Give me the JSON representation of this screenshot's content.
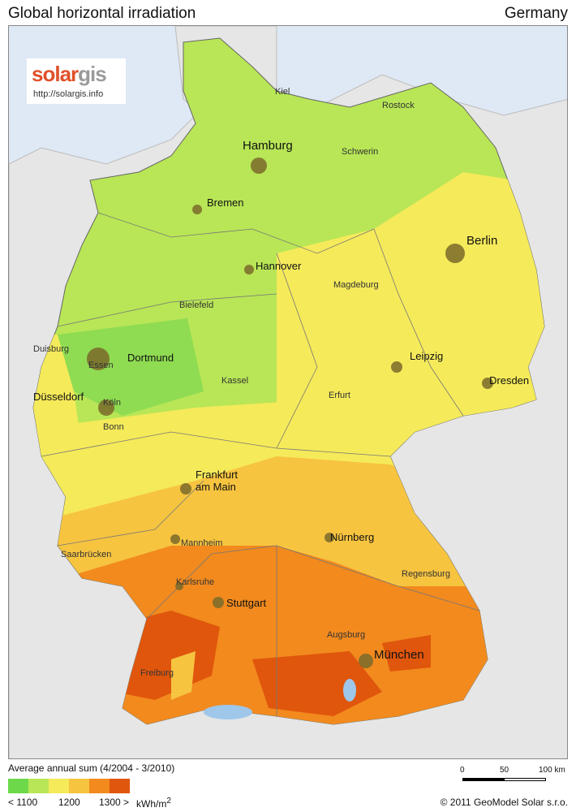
{
  "header": {
    "title": "Global horizontal irradiation",
    "country": "Germany"
  },
  "logo": {
    "brand_part1": "solar",
    "brand_part2": "gis",
    "url": "http://solargis.info"
  },
  "cities": {
    "kiel": "Kiel",
    "rostock": "Rostock",
    "hamburg": "Hamburg",
    "schwerin": "Schwerin",
    "bremen": "Bremen",
    "berlin": "Berlin",
    "hannover": "Hannover",
    "magdeburg": "Magdeburg",
    "bielefeld": "Bielefeld",
    "duisburg": "Duisburg",
    "dortmund": "Dortmund",
    "essen": "Essen",
    "leipzig": "Leipzig",
    "kassel": "Kassel",
    "dresden": "Dresden",
    "duesseldorf": "Düsseldorf",
    "koeln": "Köln",
    "erfurt": "Erfurt",
    "bonn": "Bonn",
    "frankfurt": "Frankfurt\nam Main",
    "nuernberg": "Nürnberg",
    "mannheim": "Mannheim",
    "saarbruecken": "Saarbrücken",
    "regensburg": "Regensburg",
    "karlsruhe": "Karlsruhe",
    "stuttgart": "Stuttgart",
    "augsburg": "Augsburg",
    "muenchen": "München",
    "freiburg": "Freiburg"
  },
  "legend": {
    "title": "Average annual sum (4/2004 - 3/2010)",
    "colors": [
      "#6cd84a",
      "#b8e656",
      "#f5ea5a",
      "#f7c440",
      "#f28a1e",
      "#e0560c"
    ],
    "label_low": "< 1100",
    "label_mid": "1200",
    "label_high": "1300 >",
    "unit": "kWh/m",
    "unit_sup": "2"
  },
  "scale": {
    "ticks": [
      "0",
      "50",
      "100 km"
    ]
  },
  "footer": {
    "copyright": "© 2011 GeoModel Solar s.r.o."
  }
}
